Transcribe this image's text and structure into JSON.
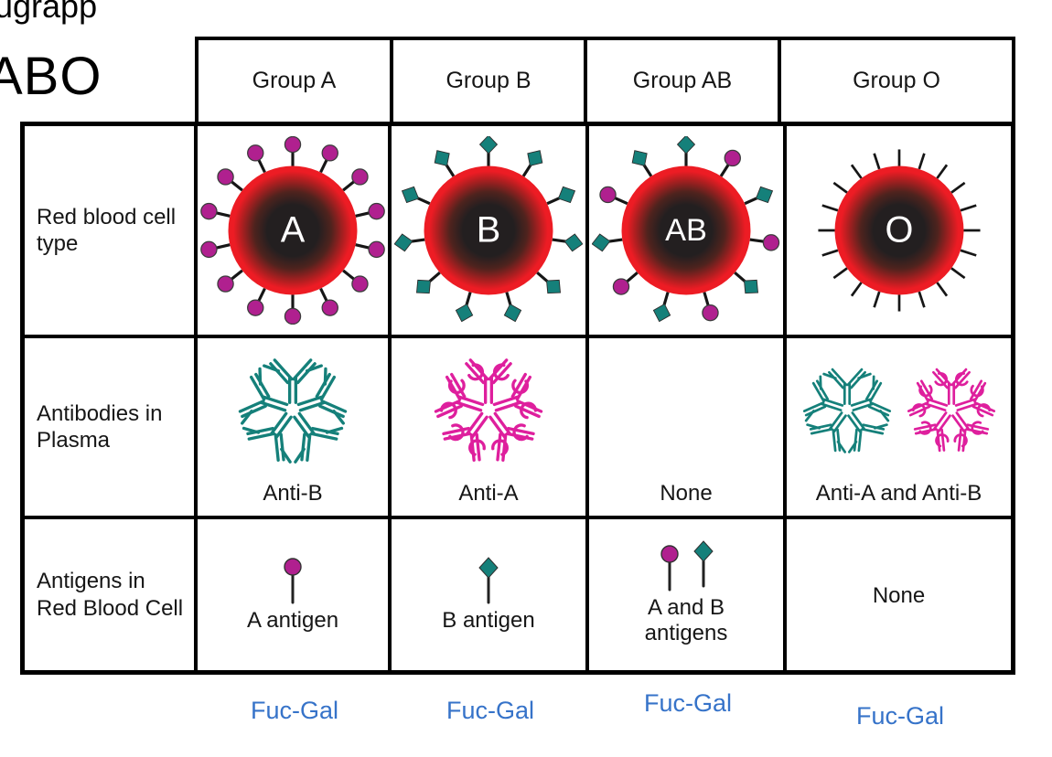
{
  "title_fragments": {
    "line1": "ugrapp",
    "line2": "ABO"
  },
  "colors": {
    "red_cell_rim": "#ed1c24",
    "red_cell_core": "#231f20",
    "antigen_a": "#b0208f",
    "antigen_b": "#15807a",
    "antibody_anti_a": "#de1f9d",
    "antibody_anti_b": "#15807a",
    "spike": "#161616",
    "fucgal_blue": "#3673c9",
    "border": "#000000"
  },
  "header": {
    "columns": [
      "Group A",
      "Group B",
      "Group AB",
      "Group O"
    ]
  },
  "row_labels": [
    "Red blood cell type",
    "Antibodies in Plasma",
    "Antigens in Red Blood Cell"
  ],
  "red_blood_cells": [
    {
      "group": "A",
      "letter": "A",
      "antigen_tips": "A",
      "spike_count": 14
    },
    {
      "group": "B",
      "letter": "B",
      "antigen_tips": "B",
      "spike_count": 11
    },
    {
      "group": "AB",
      "letter": "AB",
      "antigen_tips": "AB",
      "spike_count": 11
    },
    {
      "group": "O",
      "letter": "O",
      "antigen_tips": "none",
      "spike_count": 20
    }
  ],
  "antibodies": [
    {
      "caption": "Anti-B",
      "types": [
        "anti-B"
      ]
    },
    {
      "caption": "Anti-A",
      "types": [
        "anti-A"
      ]
    },
    {
      "caption": "None",
      "types": []
    },
    {
      "caption": "Anti-A and Anti-B",
      "types": [
        "anti-B",
        "anti-A"
      ]
    }
  ],
  "antigens": [
    {
      "caption": "A antigen",
      "icons": [
        "A"
      ]
    },
    {
      "caption": "B antigen",
      "icons": [
        "B"
      ]
    },
    {
      "caption": "A and B antigens",
      "icons": [
        "A",
        "B"
      ]
    },
    {
      "caption": "None",
      "icons": []
    }
  ],
  "footer": {
    "labels": [
      "Fuc-Gal",
      "Fuc-Gal",
      "Fuc-Gal",
      "Fuc-Gal"
    ]
  }
}
